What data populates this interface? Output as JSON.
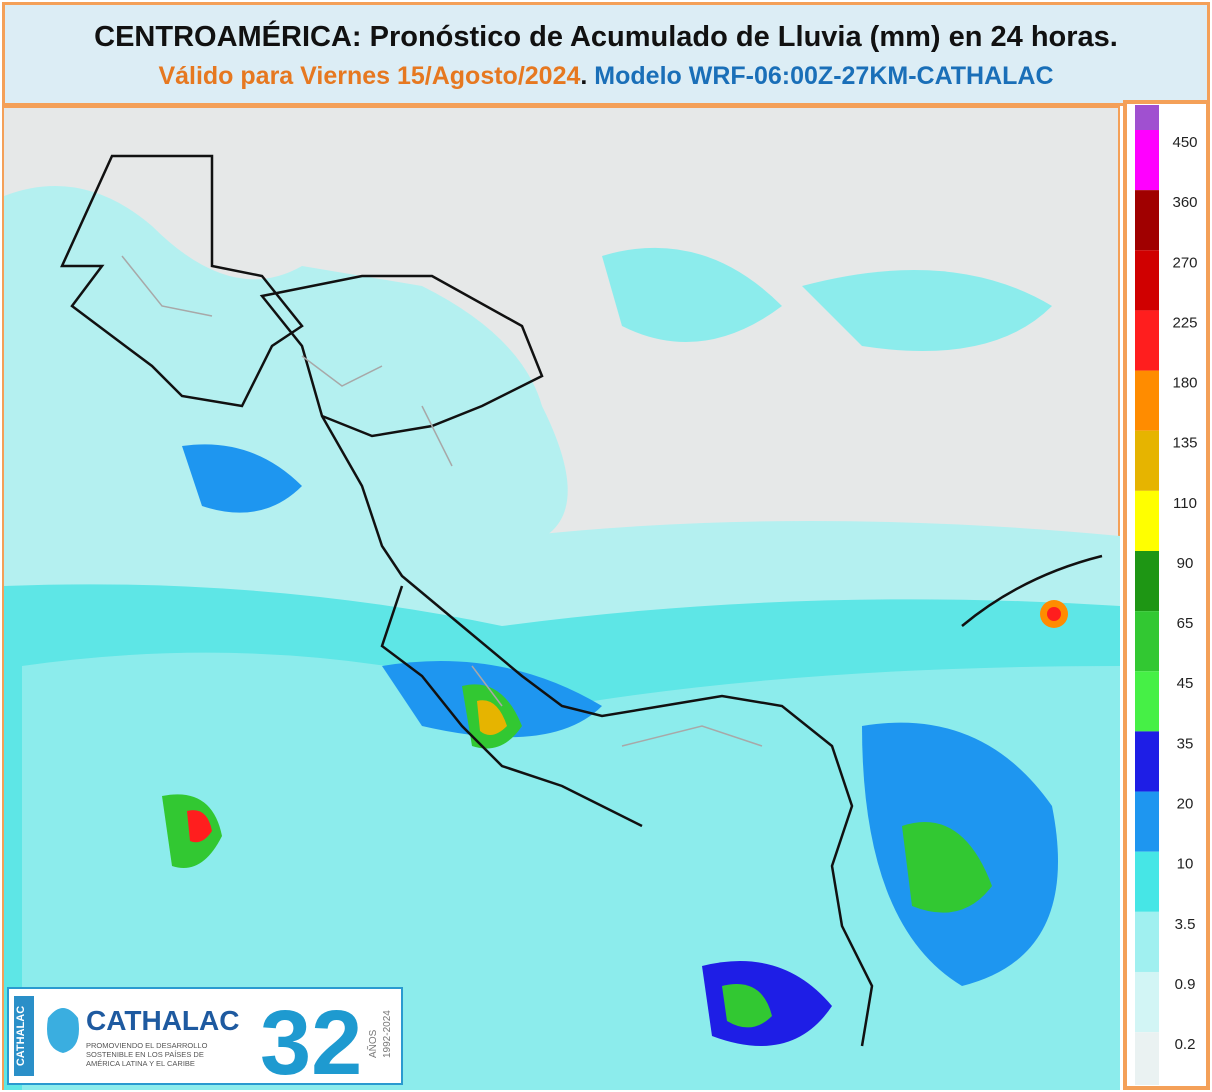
{
  "header": {
    "title": "CENTROAMÉRICA: Pronóstico de Acumulado de Lluvia (mm) en 24 horas.",
    "valid": "Válido para Viernes 15/Agosto/2024",
    "separator": ".",
    "model": "Modelo WRF-06:00Z-27KM-CATHALAC"
  },
  "legend": {
    "items": [
      {
        "label": 450,
        "color": "#a050d0"
      },
      {
        "label": 360,
        "color": "#ff00ff"
      },
      {
        "label": 270,
        "color": "#a00000"
      },
      {
        "label": 225,
        "color": "#d00000"
      },
      {
        "label": 180,
        "color": "#ff1e1e"
      },
      {
        "label": 135,
        "color": "#ff8c00"
      },
      {
        "label": 110,
        "color": "#e6b400"
      },
      {
        "label": 90,
        "color": "#ffff00"
      },
      {
        "label": 65,
        "color": "#1e9614"
      },
      {
        "label": 45,
        "color": "#32c832"
      },
      {
        "label": 35,
        "color": "#46f046"
      },
      {
        "label": 20,
        "color": "#1e1ee6"
      },
      {
        "label": 10,
        "color": "#1e96f0"
      },
      {
        "label": 3.5,
        "color": "#46e6e6"
      },
      {
        "label": 0.9,
        "color": "#a0f0f0"
      },
      {
        "label": 0.2,
        "color": "#d2f5f5"
      }
    ],
    "bottom_color": "#eaf2f2"
  },
  "logo": {
    "name": "CATHALAC",
    "side_name": "CATHALAC",
    "tagline": [
      "PROMOVIENDO EL DESARROLLO",
      "SOSTENIBLE EN LOS PAÍSES DE",
      "AMÉRICA LATINA Y EL CARIBE"
    ],
    "years": "32",
    "years_caption": "AÑOS",
    "years_range": "1992-2024"
  }
}
